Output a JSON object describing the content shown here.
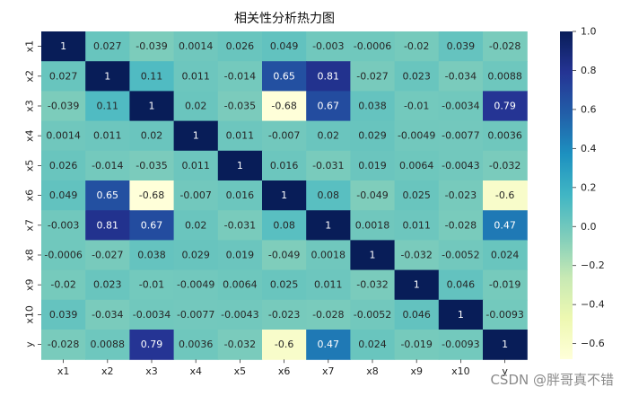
{
  "watermark": "CSDN @胖哥真不错",
  "chart_data": {
    "type": "heatmap",
    "title": "相关性分析热力图",
    "xlabel": "",
    "ylabel": "",
    "row_labels": [
      "x1",
      "x2",
      "x3",
      "x4",
      "x5",
      "x6",
      "x7",
      "x8",
      "x9",
      "x10",
      "y"
    ],
    "col_labels": [
      "x1",
      "x2",
      "x3",
      "x4",
      "x5",
      "x6",
      "x7",
      "x8",
      "x9",
      "x10",
      "y"
    ],
    "values": [
      [
        1,
        0.027,
        -0.039,
        0.0014,
        0.026,
        0.049,
        -0.003,
        -0.0006,
        -0.02,
        0.039,
        -0.028
      ],
      [
        0.027,
        1,
        0.11,
        0.011,
        -0.014,
        0.65,
        0.81,
        -0.027,
        0.023,
        -0.034,
        0.0088
      ],
      [
        -0.039,
        0.11,
        1,
        0.02,
        -0.035,
        -0.68,
        0.67,
        0.038,
        -0.01,
        -0.0034,
        0.79
      ],
      [
        0.0014,
        0.011,
        0.02,
        1,
        0.011,
        -0.007,
        0.02,
        0.029,
        -0.0049,
        -0.0077,
        0.0036
      ],
      [
        0.026,
        -0.014,
        -0.035,
        0.011,
        1,
        0.016,
        -0.031,
        0.019,
        0.0064,
        -0.0043,
        -0.032
      ],
      [
        0.049,
        0.65,
        -0.68,
        -0.007,
        0.016,
        1,
        0.08,
        -0.049,
        0.025,
        -0.023,
        -0.6
      ],
      [
        -0.003,
        0.81,
        0.67,
        0.02,
        -0.031,
        0.08,
        1,
        0.0018,
        0.011,
        -0.028,
        0.47
      ],
      [
        -0.0006,
        -0.027,
        0.038,
        0.029,
        0.019,
        -0.049,
        0.0018,
        1,
        -0.032,
        -0.0052,
        0.024
      ],
      [
        -0.02,
        0.023,
        -0.01,
        -0.0049,
        0.0064,
        0.025,
        0.011,
        -0.032,
        1,
        0.046,
        -0.019
      ],
      [
        0.039,
        -0.034,
        -0.0034,
        -0.0077,
        -0.0043,
        -0.023,
        -0.028,
        -0.0052,
        0.046,
        1,
        -0.0093
      ],
      [
        -0.028,
        0.0088,
        0.79,
        0.0036,
        -0.032,
        -0.6,
        0.47,
        0.024,
        -0.019,
        -0.0093,
        1
      ]
    ],
    "value_labels": [
      [
        "1",
        "0.027",
        "-0.039",
        "0.0014",
        "0.026",
        "0.049",
        "-0.003",
        "-0.0006",
        "-0.02",
        "0.039",
        "-0.028"
      ],
      [
        "0.027",
        "1",
        "0.11",
        "0.011",
        "-0.014",
        "0.65",
        "0.81",
        "-0.027",
        "0.023",
        "-0.034",
        "0.0088"
      ],
      [
        "-0.039",
        "0.11",
        "1",
        "0.02",
        "-0.035",
        "-0.68",
        "0.67",
        "0.038",
        "-0.01",
        "-0.0034",
        "0.79"
      ],
      [
        "0.0014",
        "0.011",
        "0.02",
        "1",
        "0.011",
        "-0.007",
        "0.02",
        "0.029",
        "-0.0049",
        "-0.0077",
        "0.0036"
      ],
      [
        "0.026",
        "-0.014",
        "-0.035",
        "0.011",
        "1",
        "0.016",
        "-0.031",
        "0.019",
        "0.0064",
        "-0.0043",
        "-0.032"
      ],
      [
        "0.049",
        "0.65",
        "-0.68",
        "-0.007",
        "0.016",
        "1",
        "0.08",
        "-0.049",
        "0.025",
        "-0.023",
        "-0.6"
      ],
      [
        "-0.003",
        "0.81",
        "0.67",
        "0.02",
        "-0.031",
        "0.08",
        "1",
        "0.0018",
        "0.011",
        "-0.028",
        "0.47"
      ],
      [
        "-0.0006",
        "-0.027",
        "0.038",
        "0.029",
        "0.019",
        "-0.049",
        "0.0018",
        "1",
        "-0.032",
        "-0.0052",
        "0.024"
      ],
      [
        "-0.02",
        "0.023",
        "-0.01",
        "-0.0049",
        "0.0064",
        "0.025",
        "0.011",
        "-0.032",
        "1",
        "0.046",
        "-0.019"
      ],
      [
        "0.039",
        "-0.034",
        "-0.0034",
        "-0.0077",
        "-0.0043",
        "-0.023",
        "-0.028",
        "-0.0052",
        "0.046",
        "1",
        "-0.0093"
      ],
      [
        "-0.028",
        "0.0088",
        "0.79",
        "0.0036",
        "-0.032",
        "-0.6",
        "0.47",
        "0.024",
        "-0.019",
        "-0.0093",
        "1"
      ]
    ],
    "colormap": "YlGnBu",
    "colormap_stops": [
      "#ffffd9",
      "#edf8b1",
      "#c7e9b4",
      "#7fcdbb",
      "#41b6c4",
      "#1d91c0",
      "#225ea8",
      "#253494",
      "#081d58"
    ],
    "vmin": -0.68,
    "vmax": 1.0,
    "colorbar_ticks": [
      1.0,
      0.8,
      0.6,
      0.4,
      0.2,
      0.0,
      -0.2,
      -0.4,
      -0.6
    ],
    "colorbar_tick_labels": [
      "1.0",
      "0.8",
      "0.6",
      "0.4",
      "0.2",
      "0.0",
      "−0.2",
      "−0.4",
      "−0.6"
    ],
    "text_color_dark": "#262626",
    "text_color_light": "#ffffff"
  }
}
